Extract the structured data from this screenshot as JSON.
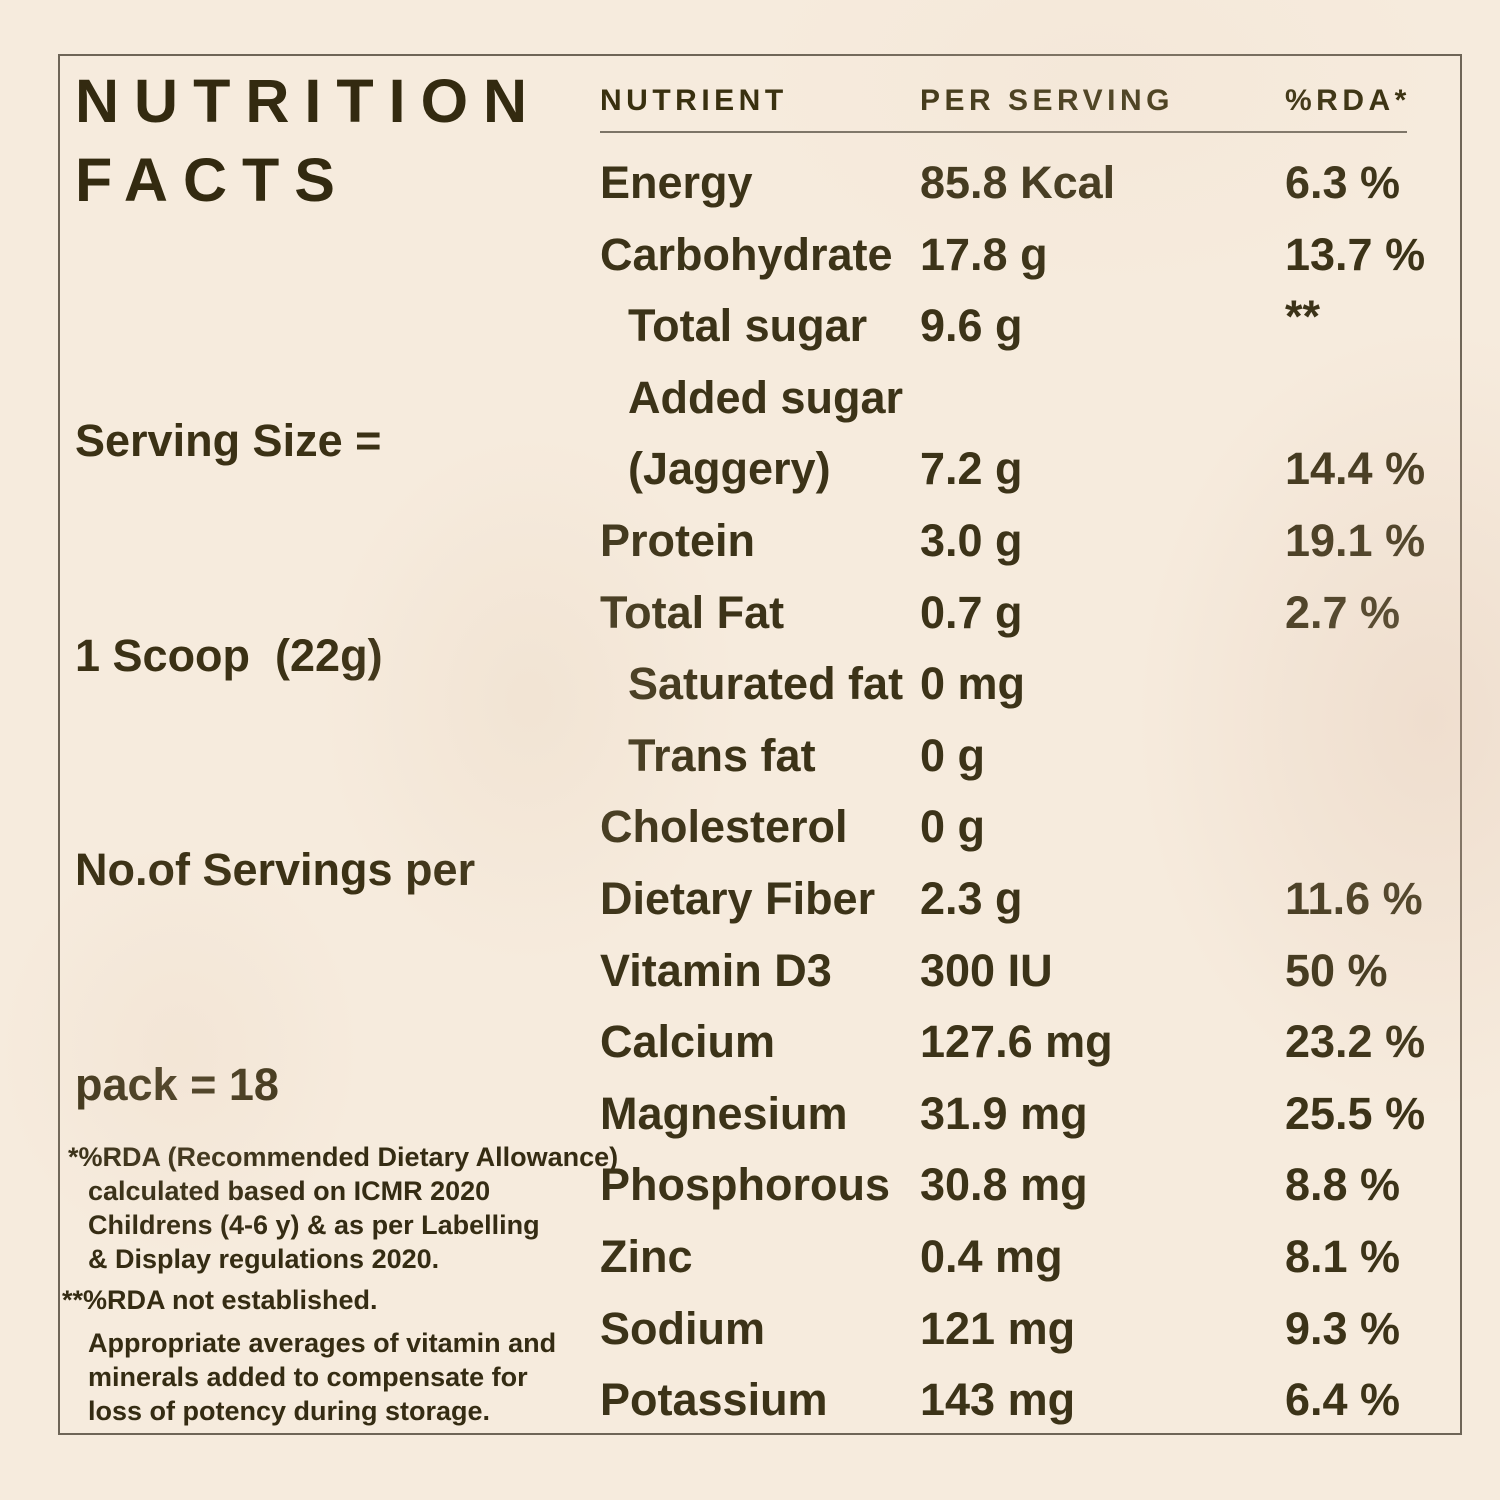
{
  "panel": {
    "title_line1": "NUTRITION",
    "title_line2": "FACTS",
    "serving_lines": [
      "Serving Size =",
      "1 Scoop  (22g)",
      "No.of Servings per",
      "pack = 18"
    ],
    "footnote_rda": "*%RDA (Recommended Dietary Allowance)\ncalculated based on ICMR 2020\nChildrens (4-6 y) & as per Labelling\n& Display regulations 2020.",
    "footnote_not_established": "**%RDA not established.",
    "footnote_averages": "Appropriate averages of vitamin and\nminerals added to compensate for\nloss of potency during storage."
  },
  "table": {
    "columns": [
      "NUTRIENT",
      "PER SERVING",
      "%RDA*"
    ],
    "rows": [
      {
        "label": "Energy",
        "indent": false,
        "value": "85.8 Kcal",
        "rda": "6.3 %"
      },
      {
        "label": "Carbohydrate",
        "indent": false,
        "value": "17.8 g",
        "rda": "13.7 %"
      },
      {
        "label": "Total sugar",
        "indent": true,
        "value": "9.6 g",
        "rda": "**"
      },
      {
        "label": "Added sugar",
        "indent": true,
        "value": "",
        "rda": ""
      },
      {
        "label": "(Jaggery)",
        "indent": true,
        "value": "7.2 g",
        "rda": "14.4 %"
      },
      {
        "label": "Protein",
        "indent": false,
        "value": "3.0 g",
        "rda": "19.1 %"
      },
      {
        "label": "Total Fat",
        "indent": false,
        "value": "0.7 g",
        "rda": "2.7 %"
      },
      {
        "label": "Saturated fat",
        "indent": true,
        "value": "0 mg",
        "rda": ""
      },
      {
        "label": "Trans fat",
        "indent": true,
        "value": "0 g",
        "rda": ""
      },
      {
        "label": "Cholesterol",
        "indent": false,
        "value": "0 g",
        "rda": ""
      },
      {
        "label": "Dietary Fiber",
        "indent": false,
        "value": "2.3 g",
        "rda": "11.6 %"
      },
      {
        "label": "Vitamin D3",
        "indent": false,
        "value": "300 IU",
        "rda": "50 %"
      },
      {
        "label": "Calcium",
        "indent": false,
        "value": "127.6 mg",
        "rda": "23.2 %"
      },
      {
        "label": "Magnesium",
        "indent": false,
        "value": "31.9 mg",
        "rda": "25.5 %"
      },
      {
        "label": "Phosphorous",
        "indent": false,
        "value": "30.8 mg",
        "rda": "8.8 %"
      },
      {
        "label": "Zinc",
        "indent": false,
        "value": "0.4 mg",
        "rda": "8.1 %"
      },
      {
        "label": "Sodium",
        "indent": false,
        "value": "121 mg",
        "rda": "9.3 %"
      },
      {
        "label": "Potassium",
        "indent": false,
        "value": "143 mg",
        "rda": "6.4 %"
      }
    ]
  },
  "colors": {
    "background": "#f6ebdd",
    "text": "#3b3115",
    "title_text": "#332a10",
    "border": "#6e6557",
    "rule": "#7c7467"
  }
}
